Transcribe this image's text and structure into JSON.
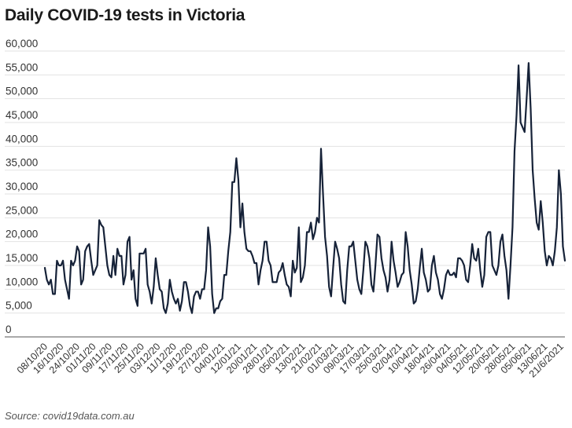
{
  "chart_data": {
    "type": "line",
    "title": "Daily COVID-19 tests in Victoria",
    "source": "Source: covid19data.com.au",
    "xlabel": "",
    "ylabel": "",
    "ylim": [
      0,
      60000
    ],
    "y_ticks": [
      "0",
      "5,000",
      "10,000",
      "15,000",
      "20,000",
      "25,000",
      "30,000",
      "35,000",
      "40,000",
      "45,000",
      "50,000",
      "55,000",
      "60,000"
    ],
    "x_start": "2020-10-08",
    "x_ticks": [
      "08/10/20",
      "16/10/20",
      "24/10/20",
      "01/11/20",
      "09/11/20",
      "17/11/20",
      "25/11/20",
      "03/12/20",
      "11/12/20",
      "19/12/20",
      "27/12/20",
      "04/01/21",
      "12/01/21",
      "20/01/21",
      "28/01/21",
      "05/02/21",
      "13/02/21",
      "21/02/21",
      "01/03/21",
      "09/03/21",
      "17/03/21",
      "25/03/21",
      "02/04/21",
      "10/04/21",
      "18/04/21",
      "26/04/21",
      "04/05/21",
      "12/05/21",
      "20/05/21",
      "28/05/21",
      "05/06/21",
      "13/06/21",
      "21/6/2021"
    ],
    "grid": "horizontal",
    "legend": "none",
    "colors": {
      "line": "#162238",
      "grid": "#e2e2e2"
    },
    "series": [
      {
        "values": [
          14500,
          12000,
          11000,
          12000,
          9000,
          9000,
          16000,
          15000,
          15000,
          16000,
          12000,
          10000,
          8000,
          16000,
          15000,
          16000,
          19000,
          18000,
          11000,
          12000,
          18000,
          19000,
          19500,
          16000,
          13000,
          14000,
          15000,
          24500,
          23500,
          23000,
          19000,
          15000,
          13000,
          12500,
          17000,
          13000,
          18500,
          17000,
          17000,
          11000,
          13000,
          20000,
          21000,
          12000,
          14000,
          8000,
          6500,
          17500,
          17500,
          17500,
          18500,
          11000,
          9500,
          7000,
          10500,
          16500,
          13000,
          10000,
          9500,
          6000,
          5000,
          7000,
          12000,
          9500,
          8000,
          7000,
          8000,
          5500,
          7500,
          11500,
          11500,
          9500,
          6500,
          5000,
          8500,
          9500,
          9500,
          8000,
          10000,
          10000,
          14000,
          23000,
          19000,
          9000,
          5000,
          6000,
          6000,
          7500,
          8000,
          13000,
          13000,
          18000,
          22000,
          32500,
          32500,
          37500,
          33000,
          23000,
          28000,
          22000,
          18500,
          18000,
          18000,
          17000,
          15500,
          15500,
          11000,
          14000,
          16000,
          20000,
          20000,
          16000,
          15000,
          11500,
          11500,
          11500,
          13500,
          14000,
          15500,
          13000,
          11000,
          10500,
          8500,
          16000,
          13500,
          14500,
          23000,
          11500,
          12500,
          15000,
          22000,
          22000,
          24000,
          20500,
          22000,
          25000,
          24000,
          39500,
          30000,
          21000,
          17000,
          10500,
          8500,
          14500,
          20000,
          18500,
          16500,
          11000,
          7500,
          7000,
          14000,
          19000,
          19000,
          20000,
          16000,
          12000,
          10000,
          9000,
          14000,
          20000,
          19000,
          16500,
          11000,
          9500,
          15000,
          21500,
          21000,
          16500,
          14000,
          12500,
          9500,
          12000,
          20000,
          16000,
          13500,
          10500,
          11500,
          13000,
          13500,
          22000,
          19000,
          14000,
          11000,
          7000,
          7500,
          10000,
          14500,
          18500,
          13500,
          12000,
          9500,
          10000,
          15000,
          17000,
          13500,
          12000,
          9000,
          8000,
          10000,
          13000,
          14000,
          13000,
          13000,
          13500,
          12500,
          16500,
          16500,
          16000,
          15000,
          12000,
          11500,
          15000,
          19500,
          16500,
          16000,
          18500,
          14000,
          10500,
          13000,
          21000,
          22000,
          22000,
          15000,
          14000,
          13000,
          15000,
          20000,
          21500,
          17000,
          14000,
          8000,
          15000,
          23000,
          39000,
          46500,
          57000,
          45000,
          44000,
          43000,
          50000,
          57500,
          48000,
          35000,
          29000,
          24000,
          22500,
          28500,
          24000,
          18000,
          15000,
          17000,
          16500,
          15000,
          18000,
          23000,
          35000,
          30000,
          19000,
          16000
        ]
      }
    ]
  }
}
